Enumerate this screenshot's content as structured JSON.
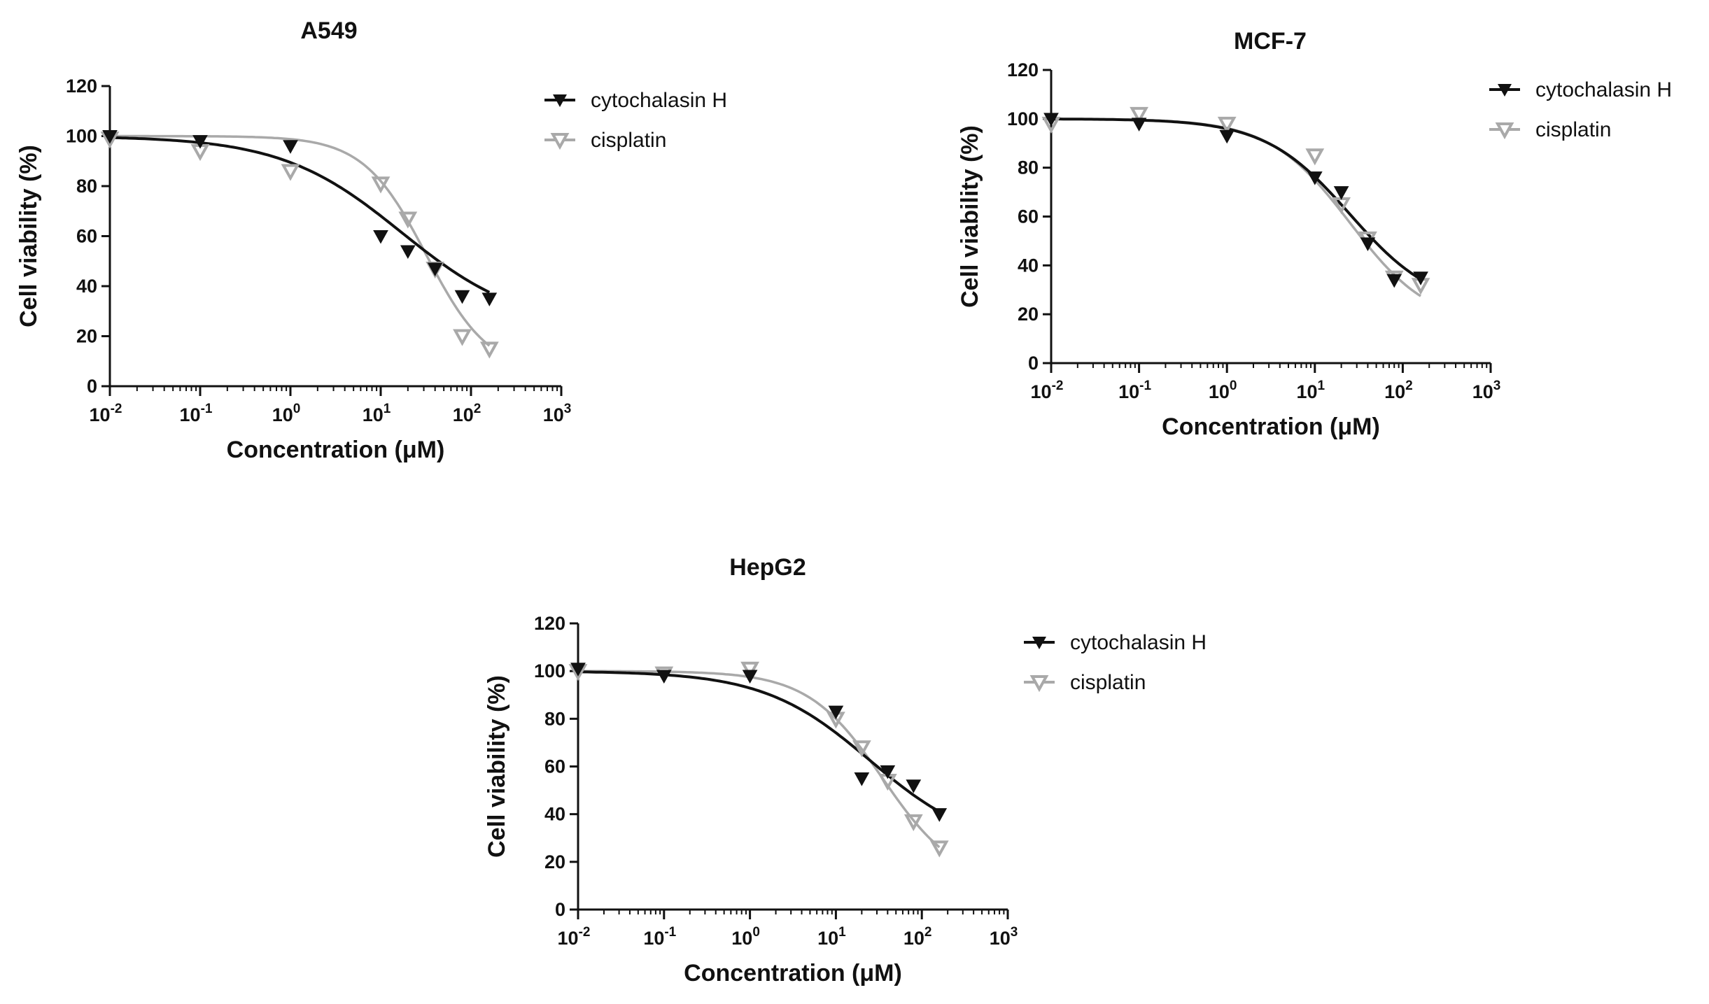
{
  "colors": {
    "cytochalasin": "#111111",
    "cisplatin": "#a9a9a9"
  },
  "chart_data": [
    {
      "type": "line",
      "title": "A549",
      "xlabel": "Concentration (μM)",
      "ylabel": "Cell viability (%)",
      "xscale": "log",
      "xlim": [
        0.01,
        1000
      ],
      "ylim": [
        0,
        120
      ],
      "yticks": [
        0,
        20,
        40,
        60,
        80,
        100,
        120
      ],
      "xtick_labels": [
        {
          "base": "10",
          "exp": "-2"
        },
        {
          "base": "10",
          "exp": "-1"
        },
        {
          "base": "10",
          "exp": "0"
        },
        {
          "base": "10",
          "exp": "1"
        },
        {
          "base": "10",
          "exp": "2"
        },
        {
          "base": "10",
          "exp": "3"
        }
      ],
      "legend": "top-right",
      "series": [
        {
          "name": "cytochalasin H",
          "marker": "filled-triangle-down",
          "x": [
            0.01,
            0.1,
            1,
            10,
            20,
            40,
            80,
            160
          ],
          "y": [
            100,
            98,
            96,
            60,
            54,
            47,
            36,
            35
          ],
          "curve": {
            "top": 100,
            "bottom": 23,
            "ic50": 17,
            "hill": 0.65
          }
        },
        {
          "name": "cisplatin",
          "marker": "open-triangle-down",
          "x": [
            0.01,
            0.1,
            1,
            10,
            20,
            40,
            80,
            160
          ],
          "y": [
            99,
            94,
            86,
            81,
            67,
            47,
            20,
            15
          ],
          "curve": {
            "top": 100,
            "bottom": 5,
            "ic50": 32,
            "hill": 1.25
          }
        }
      ]
    },
    {
      "type": "line",
      "title": "MCF-7",
      "xlabel": "Concentration (μM)",
      "ylabel": "Cell viability (%)",
      "xscale": "log",
      "xlim": [
        0.01,
        1000
      ],
      "ylim": [
        0,
        120
      ],
      "yticks": [
        0,
        20,
        40,
        60,
        80,
        100,
        120
      ],
      "xtick_labels": [
        {
          "base": "10",
          "exp": "-2"
        },
        {
          "base": "10",
          "exp": "-1"
        },
        {
          "base": "10",
          "exp": "0"
        },
        {
          "base": "10",
          "exp": "1"
        },
        {
          "base": "10",
          "exp": "2"
        },
        {
          "base": "10",
          "exp": "3"
        }
      ],
      "legend": "top-right",
      "series": [
        {
          "name": "cytochalasin H",
          "marker": "filled-triangle-down",
          "x": [
            0.01,
            0.1,
            1,
            10,
            20,
            40,
            80,
            160
          ],
          "y": [
            100,
            98,
            93,
            76,
            70,
            49,
            34,
            35
          ],
          "curve": {
            "top": 100,
            "bottom": 22,
            "ic50": 25,
            "hill": 0.9
          }
        },
        {
          "name": "cisplatin",
          "marker": "open-triangle-down",
          "x": [
            0.01,
            0.1,
            1,
            10,
            20,
            40,
            80,
            160
          ],
          "y": [
            98,
            102,
            98,
            85,
            65,
            51,
            35,
            32
          ],
          "curve": {
            "top": 100,
            "bottom": 15,
            "ic50": 25,
            "hill": 0.95
          }
        }
      ]
    },
    {
      "type": "line",
      "title": "HepG2",
      "xlabel": "Concentration (μM)",
      "ylabel": "Cell viability (%)",
      "xscale": "log",
      "xlim": [
        0.01,
        1000
      ],
      "ylim": [
        0,
        120
      ],
      "yticks": [
        0,
        20,
        40,
        60,
        80,
        100,
        120
      ],
      "xtick_labels": [
        {
          "base": "10",
          "exp": "-2"
        },
        {
          "base": "10",
          "exp": "-1"
        },
        {
          "base": "10",
          "exp": "0"
        },
        {
          "base": "10",
          "exp": "1"
        },
        {
          "base": "10",
          "exp": "2"
        },
        {
          "base": "10",
          "exp": "3"
        }
      ],
      "legend": "top-right",
      "series": [
        {
          "name": "cytochalasin H",
          "marker": "filled-triangle-down",
          "x": [
            0.01,
            0.1,
            1,
            10,
            20,
            40,
            80,
            160
          ],
          "y": [
            101,
            98,
            98,
            83,
            55,
            58,
            52,
            40
          ],
          "curve": {
            "top": 100,
            "bottom": 25,
            "ic50": 25,
            "hill": 0.7
          }
        },
        {
          "name": "cisplatin",
          "marker": "open-triangle-down",
          "x": [
            0.01,
            0.1,
            1,
            10,
            20,
            40,
            80,
            160
          ],
          "y": [
            100,
            99,
            101,
            80,
            68,
            54,
            37,
            26
          ],
          "curve": {
            "top": 100,
            "bottom": 10,
            "ic50": 35,
            "hill": 1.0
          }
        }
      ]
    }
  ]
}
